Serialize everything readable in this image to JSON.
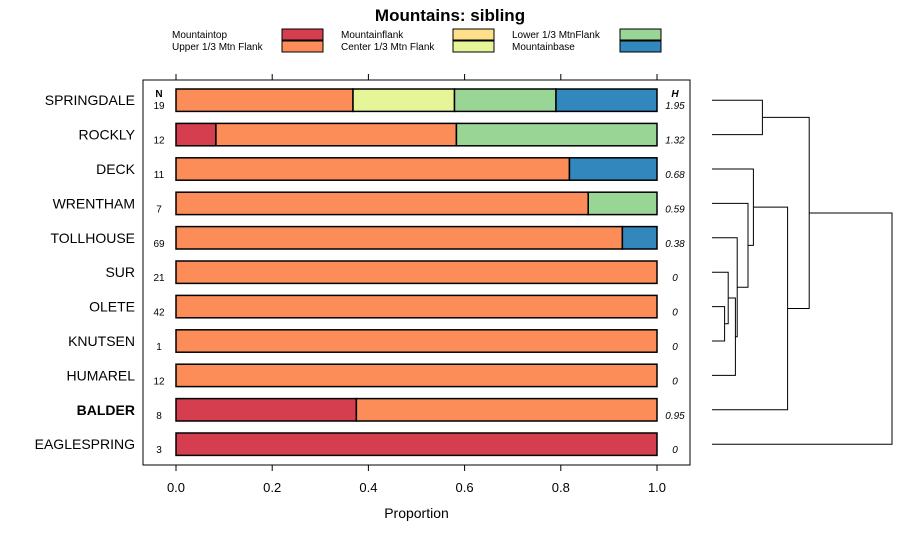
{
  "chart_data": {
    "type": "bar",
    "stacked": true,
    "orientation": "horizontal",
    "title": "Mountains: sibling",
    "xlabel": "Proportion",
    "ylabel": "",
    "xlim": [
      0,
      1
    ],
    "xticks": [
      "0.0",
      "0.2",
      "0.4",
      "0.6",
      "0.8",
      "1.0"
    ],
    "n_header": "N",
    "h_header": "H",
    "legend_position": "top",
    "legend": [
      {
        "name": "Mountaintop",
        "color": "#d53e4f"
      },
      {
        "name": "Upper 1/3 Mtn Flank",
        "color": "#fc8d59"
      },
      {
        "name": "Mountainflank",
        "color": "#fee08b"
      },
      {
        "name": "Center 1/3 Mtn Flank",
        "color": "#e6f598"
      },
      {
        "name": "Lower 1/3 MtnFlank",
        "color": "#99d594"
      },
      {
        "name": "Mountainbase",
        "color": "#3288bd"
      }
    ],
    "categories": [
      "SPRINGDALE",
      "ROCKLY",
      "DECK",
      "WRENTHAM",
      "TOLLHOUSE",
      "SUR",
      "OLETE",
      "KNUTSEN",
      "HUMAREL",
      "BALDER",
      "EAGLESPRING"
    ],
    "highlighted_category": "BALDER",
    "N": [
      "19",
      "12",
      "11",
      "7",
      "69",
      "21",
      "42",
      "1",
      "12",
      "8",
      "3"
    ],
    "H": [
      "1.95",
      "1.32",
      "0.68",
      "0.59",
      "0.38",
      "0",
      "0",
      "0",
      "0",
      "0.95",
      "0"
    ],
    "series": [
      {
        "name": "Mountaintop",
        "values": [
          0,
          0.083,
          0,
          0,
          0,
          0,
          0,
          0,
          0,
          0.375,
          1.0
        ]
      },
      {
        "name": "Upper 1/3 Mtn Flank",
        "values": [
          0.368,
          0.5,
          0.818,
          0.857,
          0.928,
          1.0,
          1.0,
          1.0,
          1.0,
          0.625,
          0
        ]
      },
      {
        "name": "Mountainflank",
        "values": [
          0,
          0,
          0,
          0,
          0,
          0,
          0,
          0,
          0,
          0,
          0
        ]
      },
      {
        "name": "Center 1/3 Mtn Flank",
        "values": [
          0.211,
          0,
          0,
          0,
          0,
          0,
          0,
          0,
          0,
          0,
          0
        ]
      },
      {
        "name": "Lower 1/3 MtnFlank",
        "values": [
          0.211,
          0.417,
          0,
          0.143,
          0,
          0,
          0,
          0,
          0,
          0,
          0
        ]
      },
      {
        "name": "Mountainbase",
        "values": [
          0.21,
          0,
          0.182,
          0,
          0.072,
          0,
          0,
          0,
          0,
          0,
          0
        ]
      }
    ],
    "dendrogram": {
      "leaf_order": [
        "SPRINGDALE",
        "ROCKLY",
        "DECK",
        "WRENTHAM",
        "TOLLHOUSE",
        "SUR",
        "OLETE",
        "KNUTSEN",
        "HUMAREL",
        "BALDER",
        "EAGLESPRING"
      ],
      "merges": [
        {
          "id": "m1",
          "a": "SPRINGDALE",
          "b": "ROCKLY",
          "height": 0.28
        },
        {
          "id": "m2",
          "a": "OLETE",
          "b": "KNUTSEN",
          "height": 0.07
        },
        {
          "id": "m3",
          "a": "SUR",
          "b": "m2",
          "height": 0.09
        },
        {
          "id": "m4",
          "a": "m3",
          "b": "HUMAREL",
          "height": 0.13
        },
        {
          "id": "m5",
          "a": "m4",
          "b": "TOLLHOUSE",
          "height": 0.14
        },
        {
          "id": "m6",
          "a": "m5",
          "b": "WRENTHAM",
          "height": 0.2
        },
        {
          "id": "m7",
          "a": "m6",
          "b": "DECK",
          "height": 0.23
        },
        {
          "id": "m8",
          "a": "m7",
          "b": "BALDER",
          "height": 0.42
        },
        {
          "id": "m9",
          "a": "m1",
          "b": "m8",
          "height": 0.54
        },
        {
          "id": "m10",
          "a": "m9",
          "b": "EAGLESPRING",
          "height": 1.0
        }
      ]
    }
  }
}
